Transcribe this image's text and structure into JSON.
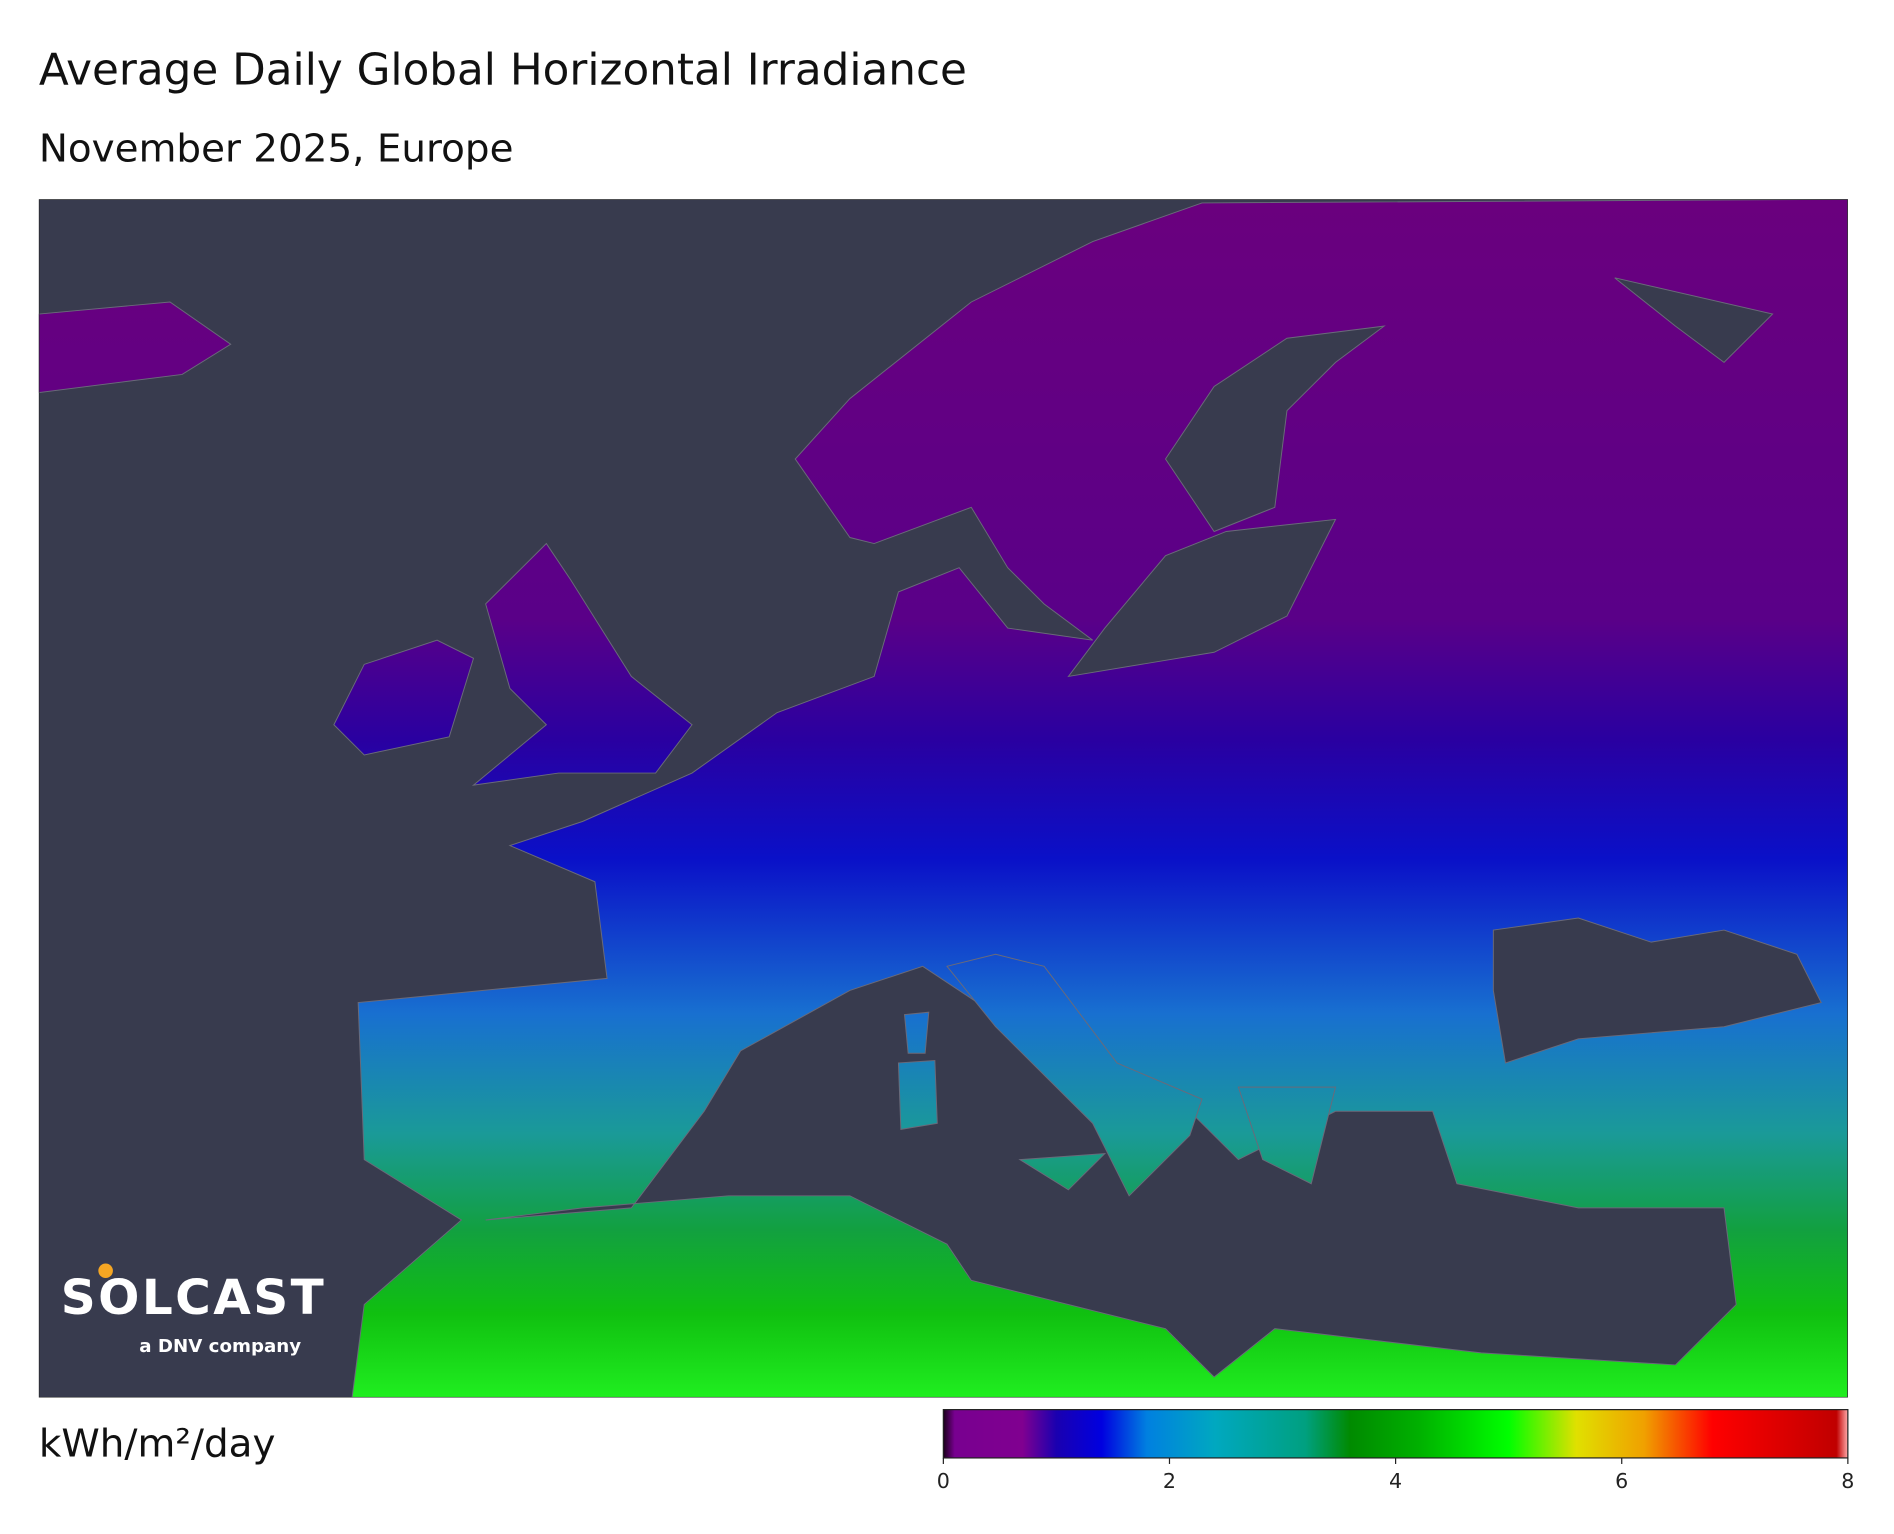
{
  "header": {
    "title": "Average Daily Global Horizontal Irradiance",
    "subtitle": "November 2025, Europe"
  },
  "logo": {
    "name": "SOLCAST",
    "tagline": "a DNV company"
  },
  "colorbar": {
    "label": "kWh/m²/day",
    "lim": [
      0,
      8
    ],
    "ticks": [
      0,
      2,
      4,
      6,
      8
    ],
    "colorscale": [
      {
        "value": 0,
        "color": "#1a001a"
      },
      {
        "value": 0.1,
        "color": "#780090"
      },
      {
        "value": 0.7,
        "color": "#800090"
      },
      {
        "value": 1.0,
        "color": "#1a00b0"
      },
      {
        "value": 1.4,
        "color": "#0000e0"
      },
      {
        "value": 1.8,
        "color": "#0080e0"
      },
      {
        "value": 2.4,
        "color": "#00a8c0"
      },
      {
        "value": 3.2,
        "color": "#00a080"
      },
      {
        "value": 3.6,
        "color": "#008a00"
      },
      {
        "value": 4.2,
        "color": "#00b000"
      },
      {
        "value": 5.0,
        "color": "#00ff00"
      },
      {
        "value": 5.6,
        "color": "#e0e000"
      },
      {
        "value": 6.2,
        "color": "#f0a000"
      },
      {
        "value": 6.8,
        "color": "#ff0000"
      },
      {
        "value": 7.9,
        "color": "#c00000"
      },
      {
        "value": 8,
        "color": "#ffaaaa"
      }
    ]
  }
}
